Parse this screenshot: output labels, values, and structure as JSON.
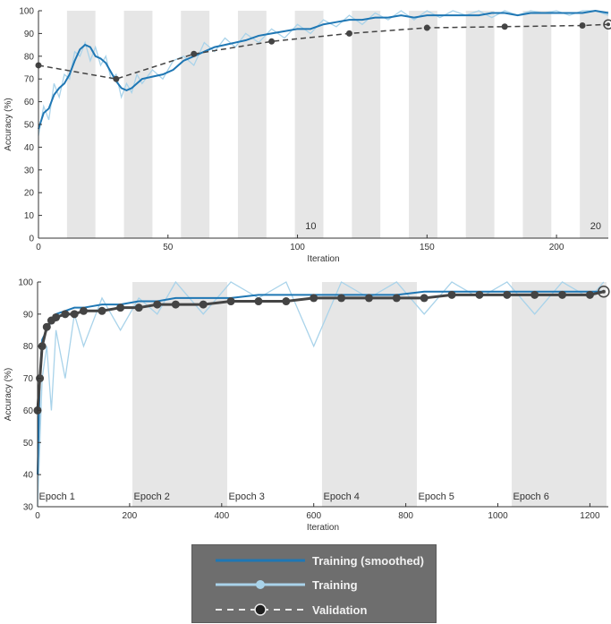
{
  "chart_data": [
    {
      "type": "line",
      "xlabel": "Iteration",
      "ylabel": "Accuracy (%)",
      "xlim": [
        0,
        220
      ],
      "ylim": [
        0,
        100
      ],
      "xticks": [
        0,
        50,
        100,
        150,
        200
      ],
      "yticks": [
        0,
        10,
        20,
        30,
        40,
        50,
        60,
        70,
        80,
        90,
        100
      ],
      "grid": false,
      "epoch_shading": [
        [
          11,
          22
        ],
        [
          33,
          44
        ],
        [
          55,
          66
        ],
        [
          77,
          88
        ],
        [
          99,
          110
        ],
        [
          121,
          132
        ],
        [
          143,
          154
        ],
        [
          165,
          176
        ],
        [
          187,
          198
        ],
        [
          209,
          220
        ]
      ],
      "epoch_labels": [
        {
          "x": 103,
          "text": "10"
        },
        {
          "x": 213,
          "text": "20"
        }
      ],
      "series": [
        {
          "name": "Training (smoothed)",
          "color": "#1f77b4",
          "x": [
            0,
            2,
            4,
            6,
            8,
            10,
            12,
            14,
            16,
            18,
            20,
            22,
            24,
            26,
            28,
            30,
            32,
            34,
            36,
            38,
            40,
            44,
            48,
            52,
            56,
            60,
            64,
            68,
            72,
            76,
            80,
            85,
            90,
            95,
            100,
            105,
            110,
            115,
            120,
            125,
            130,
            135,
            140,
            145,
            150,
            155,
            160,
            165,
            170,
            175,
            180,
            185,
            190,
            195,
            200,
            205,
            210,
            215,
            220
          ],
          "y": [
            48,
            55,
            57,
            63,
            66,
            68,
            72,
            78,
            83,
            85,
            84,
            80,
            79,
            77,
            73,
            69,
            66,
            65,
            66,
            68,
            70,
            71,
            72,
            74,
            78,
            80,
            82,
            84,
            85,
            86,
            87,
            89,
            90,
            91,
            92,
            92,
            94,
            95,
            96,
            96,
            97,
            97,
            98,
            97,
            98,
            98,
            98,
            98,
            98,
            99,
            99,
            98,
            99,
            99,
            99,
            99,
            99,
            100,
            99
          ]
        },
        {
          "name": "Training",
          "color": "#a9d3ea",
          "x": [
            0,
            2,
            4,
            6,
            8,
            10,
            12,
            14,
            16,
            18,
            20,
            22,
            24,
            26,
            28,
            30,
            32,
            34,
            36,
            38,
            40,
            44,
            48,
            52,
            56,
            60,
            64,
            68,
            72,
            76,
            80,
            85,
            90,
            95,
            100,
            105,
            110,
            115,
            120,
            125,
            130,
            135,
            140,
            145,
            150,
            155,
            160,
            165,
            170,
            175,
            180,
            185,
            190,
            195,
            200,
            205,
            210,
            215,
            220
          ],
          "y": [
            45,
            58,
            52,
            68,
            62,
            72,
            70,
            82,
            80,
            86,
            78,
            84,
            76,
            80,
            70,
            72,
            62,
            68,
            64,
            72,
            68,
            74,
            70,
            78,
            80,
            76,
            86,
            82,
            88,
            84,
            90,
            86,
            92,
            88,
            94,
            90,
            96,
            93,
            98,
            94,
            99,
            96,
            100,
            96,
            100,
            97,
            100,
            98,
            100,
            97,
            100,
            98,
            100,
            99,
            100,
            98,
            100,
            100,
            98
          ]
        },
        {
          "name": "Validation",
          "color": "#444444",
          "x": [
            0,
            30,
            60,
            90,
            120,
            150,
            180,
            210,
            220
          ],
          "y": [
            76,
            70,
            81,
            86.5,
            90,
            92.5,
            93,
            93.5,
            94
          ]
        }
      ]
    },
    {
      "type": "line",
      "xlabel": "Iteration",
      "ylabel": "Accuracy (%)",
      "xlim": [
        0,
        1240
      ],
      "ylim": [
        30,
        100
      ],
      "xticks": [
        0,
        200,
        400,
        600,
        800,
        1000,
        1200
      ],
      "yticks": [
        30,
        40,
        50,
        60,
        70,
        80,
        90,
        100
      ],
      "grid": false,
      "epoch_shading": [
        [
          206,
          412
        ],
        [
          618,
          824
        ],
        [
          1030,
          1236
        ]
      ],
      "epoch_labels": [
        {
          "x": 3,
          "text": "Epoch 1"
        },
        {
          "x": 209,
          "text": "Epoch 2"
        },
        {
          "x": 415,
          "text": "Epoch 3"
        },
        {
          "x": 621,
          "text": "Epoch 4"
        },
        {
          "x": 827,
          "text": "Epoch 5"
        },
        {
          "x": 1033,
          "text": "Epoch 6"
        }
      ],
      "series": [
        {
          "name": "Training (smoothed)",
          "color": "#1f77b4",
          "x": [
            0,
            5,
            10,
            20,
            30,
            40,
            60,
            80,
            100,
            140,
            180,
            220,
            260,
            300,
            360,
            420,
            480,
            540,
            600,
            660,
            720,
            780,
            840,
            900,
            960,
            1020,
            1080,
            1140,
            1200,
            1230
          ],
          "y": [
            40,
            70,
            82,
            85,
            88,
            90,
            91,
            92,
            92,
            93,
            93,
            94,
            94,
            95,
            95,
            95,
            96,
            96,
            96,
            96,
            96,
            96,
            97,
            97,
            97,
            97,
            97,
            97,
            97,
            97
          ]
        },
        {
          "name": "Training",
          "color": "#a9d3ea",
          "x": [
            0,
            5,
            10,
            20,
            30,
            40,
            60,
            80,
            100,
            140,
            180,
            220,
            260,
            300,
            360,
            420,
            480,
            540,
            600,
            660,
            720,
            780,
            840,
            900,
            960,
            1020,
            1080,
            1140,
            1200,
            1230
          ],
          "y": [
            30,
            50,
            70,
            80,
            60,
            85,
            70,
            90,
            80,
            95,
            85,
            95,
            90,
            100,
            90,
            100,
            95,
            100,
            80,
            100,
            95,
            100,
            90,
            100,
            95,
            100,
            90,
            100,
            95,
            100
          ]
        },
        {
          "name": "Validation",
          "color": "#444444",
          "x": [
            0,
            5,
            10,
            20,
            30,
            40,
            60,
            80,
            100,
            140,
            180,
            220,
            260,
            300,
            360,
            420,
            480,
            540,
            600,
            660,
            720,
            780,
            840,
            900,
            960,
            1020,
            1080,
            1140,
            1200,
            1230
          ],
          "y": [
            60,
            70,
            80,
            86,
            88,
            89,
            90,
            90,
            91,
            91,
            92,
            92,
            93,
            93,
            93,
            94,
            94,
            94,
            95,
            95,
            95,
            95,
            95,
            96,
            96,
            96,
            96,
            96,
            96,
            97
          ]
        }
      ]
    }
  ],
  "legend": {
    "items": [
      {
        "label": "Training (smoothed)"
      },
      {
        "label": "Training"
      },
      {
        "label": "Validation"
      }
    ]
  }
}
